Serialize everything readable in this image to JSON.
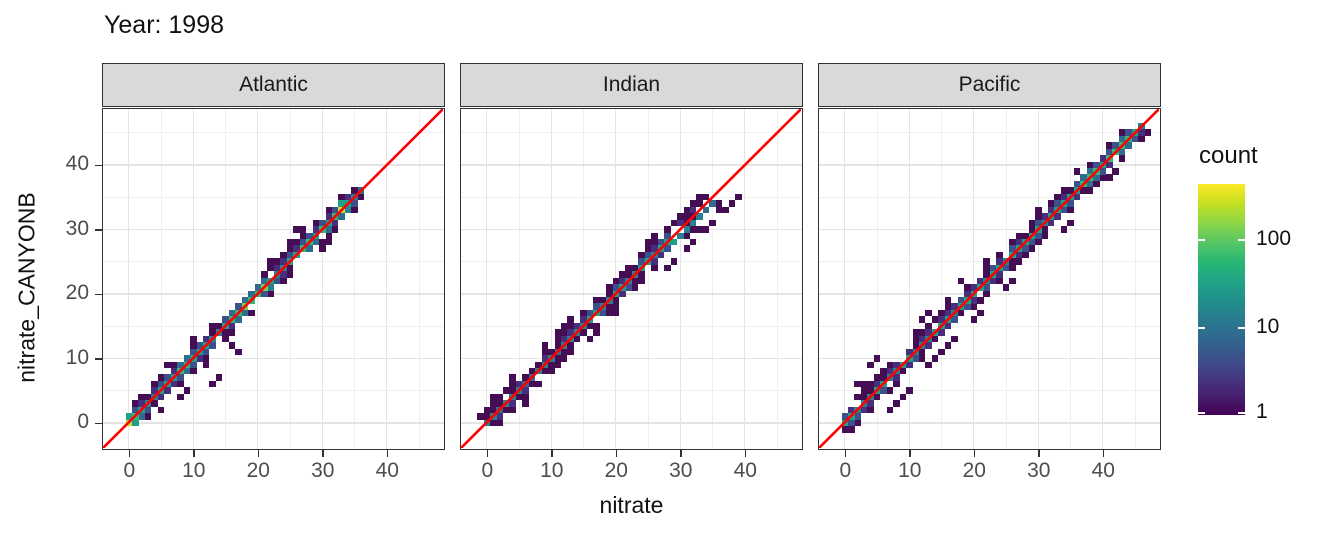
{
  "title": "Year: 1998",
  "axes": {
    "x_label": "nitrate",
    "y_label": "nitrate_CANYONB",
    "x_ticks": [
      0,
      10,
      20,
      30,
      40
    ],
    "y_ticks": [
      0,
      10,
      20,
      30,
      40
    ],
    "x_minor": [
      5,
      15,
      25,
      35,
      45
    ],
    "y_minor": [
      5,
      15,
      25,
      35,
      45
    ],
    "x_range": [
      -4.0,
      48.7
    ],
    "y_range": [
      -3.9,
      48.7
    ]
  },
  "legend": {
    "title": "count",
    "scale": "log10",
    "ticks": [
      {
        "label": "100",
        "pos": 0.242
      },
      {
        "label": "10",
        "pos": 0.623
      },
      {
        "label": "1",
        "pos": 0.993
      }
    ],
    "gradient_bottom_to_top": [
      "#440154",
      "#471f6e",
      "#443a83",
      "#3b528b",
      "#31688e",
      "#287c8e",
      "#21918c",
      "#20a486",
      "#29b872",
      "#58c765",
      "#8ed645",
      "#c5e021",
      "#fde725"
    ]
  },
  "colors": {
    "identity_line": "#ff0000",
    "strip_bg": "#d9d9d9",
    "panel_border": "#333333",
    "grid_major": "#e4e4e4",
    "grid_minor": "#efefef",
    "tick_label": "#4d4d4d",
    "level_colors": [
      "#450d54",
      "#472f7d",
      "#3b518b",
      "#2e6d8e",
      "#26828e",
      "#1fa088",
      "#36b779",
      "#7ad151",
      "#c8e020"
    ]
  },
  "chart_data": {
    "type": "heatmap",
    "subtype": "bin2d",
    "title": "Year: 1998",
    "xlabel": "nitrate",
    "ylabel": "nitrate_CANYONB",
    "xlim": [
      -4,
      48.7
    ],
    "ylim": [
      -3.9,
      48.7
    ],
    "binwidth": 1,
    "fill_scale": "viridis log10 count, breaks [1, 10, 100]",
    "level_to_count": [
      1,
      2,
      4,
      10,
      20,
      40,
      90,
      200,
      450
    ],
    "identity_line": "y = x (red)",
    "facets": [
      {
        "label": "Atlantic",
        "data_range": [
          0,
          36
        ],
        "core_start": 0,
        "core_levels": [
          8,
          6,
          5,
          4,
          4,
          5,
          5,
          5,
          6,
          6,
          5,
          5,
          5,
          4,
          4,
          5,
          6,
          6,
          7,
          6,
          6,
          7,
          5,
          4,
          4,
          5,
          5,
          6,
          6,
          5,
          6,
          5,
          6,
          8,
          5,
          4,
          3
        ],
        "outliers": [
          [
            17,
            11
          ],
          [
            25,
            27
          ],
          [
            26,
            28
          ],
          [
            27,
            29
          ],
          [
            25,
            28
          ],
          [
            26,
            30
          ],
          [
            24,
            26
          ],
          [
            27,
            30
          ],
          [
            13,
            6
          ],
          [
            14,
            7
          ],
          [
            8,
            4
          ],
          [
            9,
            5
          ],
          [
            5,
            2
          ],
          [
            3,
            1
          ],
          [
            30,
            27
          ],
          [
            31,
            28
          ],
          [
            22,
            25
          ],
          [
            10,
            13
          ],
          [
            6,
            9
          ],
          [
            2,
            4
          ],
          [
            16,
            12
          ],
          [
            12,
            9
          ]
        ],
        "scatter_n": 50,
        "spread": 1.7,
        "seed": 11
      },
      {
        "label": "Indian",
        "data_range": [
          0,
          39
        ],
        "core_start": 0,
        "core_levels": [
          4,
          4,
          3,
          4,
          4,
          4,
          3,
          3,
          4,
          4,
          4,
          3,
          4,
          4,
          4,
          4,
          5,
          5,
          4,
          4,
          5,
          5,
          4,
          4,
          5,
          5,
          4,
          5,
          5,
          5,
          4,
          4,
          4,
          4,
          3,
          3
        ],
        "bend": {
          "start": 29,
          "dy": -1
        },
        "outliers": [
          [
            12,
            15
          ],
          [
            11,
            14
          ],
          [
            13,
            16
          ],
          [
            38,
            34
          ],
          [
            39,
            35
          ],
          [
            36,
            33
          ],
          [
            37,
            33
          ],
          [
            20,
            17
          ],
          [
            28,
            24
          ],
          [
            29,
            25
          ],
          [
            33,
            30
          ],
          [
            34,
            30
          ],
          [
            35,
            31
          ],
          [
            25,
            28
          ],
          [
            26,
            29
          ],
          [
            4,
            7
          ],
          [
            16,
            13
          ],
          [
            17,
            14
          ],
          [
            6,
            3
          ],
          [
            9,
            12
          ],
          [
            31,
            27
          ],
          [
            32,
            28
          ]
        ],
        "scatter_n": 70,
        "spread": 1.9,
        "seed": 23
      },
      {
        "label": "Pacific",
        "data_range": [
          0,
          46
        ],
        "core_start": 0,
        "core_levels": [
          5,
          5,
          4,
          4,
          4,
          5,
          5,
          4,
          4,
          5,
          5,
          4,
          4,
          4,
          5,
          5,
          5,
          4,
          5,
          5,
          5,
          5,
          4,
          5,
          5,
          4,
          5,
          5,
          5,
          5,
          5,
          4,
          5,
          5,
          5,
          5,
          5,
          6,
          6,
          6,
          5,
          6,
          6,
          6,
          6,
          5,
          4
        ],
        "outliers": [
          [
            4,
            9
          ],
          [
            5,
            10
          ],
          [
            2,
            6
          ],
          [
            13,
            9
          ],
          [
            14,
            10
          ],
          [
            15,
            11
          ],
          [
            16,
            12
          ],
          [
            17,
            13
          ],
          [
            12,
            16
          ],
          [
            13,
            17
          ],
          [
            16,
            19
          ],
          [
            29,
            31
          ],
          [
            30,
            33
          ],
          [
            35,
            31
          ],
          [
            34,
            30
          ],
          [
            20,
            16
          ],
          [
            21,
            17
          ],
          [
            9,
            4
          ],
          [
            10,
            5
          ],
          [
            22,
            25
          ],
          [
            41,
            38
          ],
          [
            42,
            39
          ],
          [
            7,
            2
          ],
          [
            8,
            3
          ],
          [
            11,
            14
          ],
          [
            18,
            22
          ],
          [
            25,
            21
          ],
          [
            26,
            22
          ]
        ],
        "scatter_n": 85,
        "spread": 2.0,
        "seed": 37
      }
    ]
  }
}
